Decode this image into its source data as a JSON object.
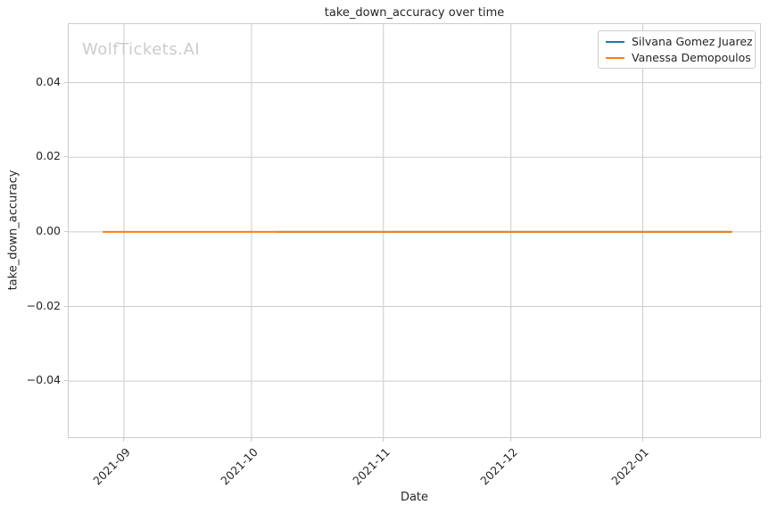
{
  "watermark": "WolfTickets.AI",
  "colors": {
    "background": "#ffffff",
    "text": "#262626",
    "grid": "#cccccc",
    "spine": "#cccccc",
    "watermark": "#cccccc",
    "series_blue": "#1f77b4",
    "series_orange": "#ff7f0e"
  },
  "chart_data": {
    "type": "line",
    "title": "take_down_accuracy over time",
    "xlabel": "Date",
    "ylabel": "take_down_accuracy",
    "grid": true,
    "legend_position": "upper right",
    "x_tick_labels": [
      "2021-09",
      "2021-10",
      "2021-11",
      "2021-12",
      "2022-01"
    ],
    "x_tick_dates": [
      "2021-09-01",
      "2021-10-01",
      "2021-11-01",
      "2021-12-01",
      "2022-01-01"
    ],
    "x_tick_rotation_deg": 45,
    "xlim": [
      "2021-08-19",
      "2022-01-29"
    ],
    "y_ticks": [
      0.04,
      0.02,
      0.0,
      -0.02,
      -0.04
    ],
    "y_tick_labels": [
      "0.04",
      "0.02",
      "0.00",
      "−0.02",
      "−0.04"
    ],
    "ylim": [
      -0.0555,
      0.0557
    ],
    "series": [
      {
        "name": "Silvana Gomez Juarez",
        "color": "#1f77b4",
        "points": [
          {
            "x": "2021-10-07",
            "y": 0.0
          },
          {
            "x": "2022-01-22",
            "y": 0.0
          }
        ]
      },
      {
        "name": "Vanessa Demopoulos",
        "color": "#ff7f0e",
        "points": [
          {
            "x": "2021-08-27",
            "y": 0.0
          },
          {
            "x": "2022-01-22",
            "y": 0.0
          }
        ]
      }
    ]
  }
}
